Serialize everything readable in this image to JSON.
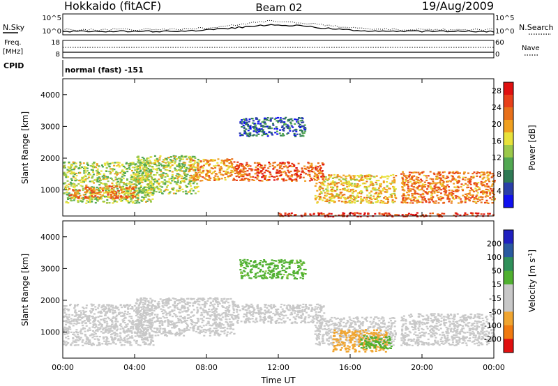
{
  "header": {
    "station": "Hokkaido (fitACF)",
    "beam": "Beam 02",
    "date": "19/Aug/2009"
  },
  "strip_panels": {
    "nsky_label": "N.Sky",
    "nsky_ticks": [
      "10^5",
      "10^0"
    ],
    "nsearch_label": "N.Search",
    "nsearch_ticks": [
      "10^5",
      "10^0"
    ],
    "freq_label_1": "Freq.",
    "freq_label_2": "[MHz]",
    "freq_ticks": [
      "18",
      "8"
    ],
    "nave_label": "Nave",
    "nave_ticks": [
      "60",
      "0"
    ],
    "cpid_label": "CPID",
    "cpid_value": "normal (fast) -151"
  },
  "colors": {
    "power": [
      "#1010f0",
      "#2a3fa8",
      "#2f7a55",
      "#52a852",
      "#9cc94a",
      "#e8e23a",
      "#f0a020",
      "#e8701a",
      "#e8401a",
      "#e01010"
    ],
    "velocity": [
      "#e01010",
      "#f04810",
      "#f07a10",
      "#f0a530",
      "#c8c8c8",
      "#c8c8c8",
      "#50b030",
      "#30905a",
      "#2a5aa0",
      "#2020c0"
    ],
    "bg": "#ffffff"
  },
  "chart_data": [
    {
      "type": "heatmap",
      "title": "",
      "xlabel": "Time UT",
      "ylabel": "Slant Range [km]",
      "x_range": [
        "00:00",
        "24:00"
      ],
      "x_ticks": [
        "00:00",
        "04:00",
        "08:00",
        "12:00",
        "16:00",
        "20:00",
        "00:00"
      ],
      "ylim": [
        180,
        4500
      ],
      "y_ticks": [
        1000,
        2000,
        3000,
        4000
      ],
      "colorbar": {
        "label": "Power [dB]",
        "ticks": [
          4,
          8,
          12,
          16,
          20,
          24,
          28
        ],
        "range": [
          0,
          30
        ]
      },
      "echo_regions": [
        {
          "t_start": 0.0,
          "t_end": 5.0,
          "range_low": 600,
          "range_high": 1900,
          "level": 14
        },
        {
          "t_start": 0.3,
          "t_end": 4.0,
          "range_low": 750,
          "range_high": 1150,
          "level": 22
        },
        {
          "t_start": 4.0,
          "t_end": 7.5,
          "range_low": 900,
          "range_high": 2100,
          "level": 14
        },
        {
          "t_start": 7.0,
          "t_end": 9.5,
          "range_low": 1300,
          "range_high": 2000,
          "level": 20
        },
        {
          "t_start": 9.5,
          "t_end": 14.5,
          "range_low": 1300,
          "range_high": 1900,
          "level": 24
        },
        {
          "t_start": 9.8,
          "t_end": 13.5,
          "range_low": 2700,
          "range_high": 3300,
          "level": 6
        },
        {
          "t_start": 14.0,
          "t_end": 18.5,
          "range_low": 600,
          "range_high": 1500,
          "level": 18
        },
        {
          "t_start": 18.8,
          "t_end": 24.0,
          "range_low": 600,
          "range_high": 1600,
          "level": 22
        },
        {
          "t_start": 12.0,
          "t_end": 24.0,
          "range_low": 180,
          "range_high": 300,
          "level": 26
        }
      ]
    },
    {
      "type": "heatmap",
      "title": "",
      "xlabel": "Time UT",
      "ylabel": "Slant Range [km]",
      "x_range": [
        "00:00",
        "24:00"
      ],
      "x_ticks": [
        "00:00",
        "04:00",
        "08:00",
        "12:00",
        "16:00",
        "20:00",
        "00:00"
      ],
      "ylim": [
        180,
        4500
      ],
      "y_ticks": [
        1000,
        2000,
        3000,
        4000
      ],
      "colorbar": {
        "label": "Velocity [m s^-1]",
        "ticks": [
          200,
          100,
          50,
          15,
          -15,
          -50,
          -100,
          -200
        ]
      },
      "echo_regions": [
        {
          "t_start": 0.0,
          "t_end": 5.0,
          "range_low": 600,
          "range_high": 1900,
          "velocity": 0
        },
        {
          "t_start": 4.0,
          "t_end": 9.5,
          "range_low": 900,
          "range_high": 2100,
          "velocity": 0
        },
        {
          "t_start": 9.5,
          "t_end": 14.5,
          "range_low": 1300,
          "range_high": 1900,
          "velocity": 0
        },
        {
          "t_start": 9.8,
          "t_end": 13.5,
          "range_low": 2700,
          "range_high": 3300,
          "velocity": 40
        },
        {
          "t_start": 14.0,
          "t_end": 18.5,
          "range_low": 600,
          "range_high": 1500,
          "velocity": 0
        },
        {
          "t_start": 15.0,
          "t_end": 18.0,
          "range_low": 400,
          "range_high": 1100,
          "velocity": -60
        },
        {
          "t_start": 16.5,
          "t_end": 18.3,
          "range_low": 500,
          "range_high": 900,
          "velocity": 60
        },
        {
          "t_start": 18.8,
          "t_end": 24.0,
          "range_low": 600,
          "range_high": 1600,
          "velocity": 0
        }
      ]
    }
  ]
}
